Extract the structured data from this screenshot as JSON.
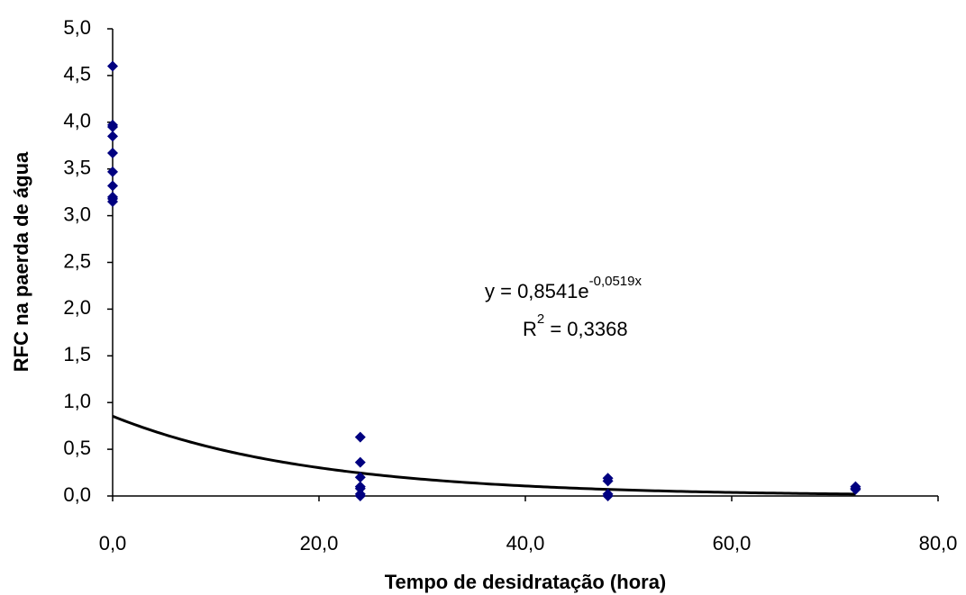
{
  "chart_data": {
    "type": "scatter",
    "x_label": "Tempo de desidratação (hora)",
    "y_label": "RFC na paerda de água",
    "xlim": [
      0,
      80
    ],
    "xticks": [
      {
        "value": 0,
        "label": "0,0"
      },
      {
        "value": 20,
        "label": "20,0"
      },
      {
        "value": 40,
        "label": "40,0"
      },
      {
        "value": 60,
        "label": "60,0"
      },
      {
        "value": 80,
        "label": "80,0"
      }
    ],
    "ylim": [
      0,
      5
    ],
    "yticks": [
      {
        "value": 0,
        "label": "0,0"
      },
      {
        "value": 0.5,
        "label": "0,5"
      },
      {
        "value": 1,
        "label": "1,0"
      },
      {
        "value": 1.5,
        "label": "1,5"
      },
      {
        "value": 2,
        "label": "2,0"
      },
      {
        "value": 2.5,
        "label": "2,5"
      },
      {
        "value": 3,
        "label": "3,0"
      },
      {
        "value": 3.5,
        "label": "3,5"
      },
      {
        "value": 4,
        "label": "4,0"
      },
      {
        "value": 4.5,
        "label": "4,5"
      },
      {
        "value": 5,
        "label": "5,0"
      }
    ],
    "grid": false,
    "series": [
      {
        "color": "#000080",
        "x": [
          0,
          0,
          0,
          0,
          0,
          0,
          0,
          0,
          0,
          0,
          24,
          24,
          24,
          24,
          24,
          24,
          24,
          48,
          48,
          48,
          48,
          72,
          72,
          72
        ],
        "values": [
          4.6,
          3.97,
          3.95,
          3.85,
          3.67,
          3.47,
          3.32,
          3.2,
          3.18,
          3.15,
          0.63,
          0.36,
          0.2,
          0.1,
          0.08,
          0.02,
          0.0,
          0.19,
          0.16,
          0.02,
          0.0,
          0.1,
          0.08,
          0.07
        ]
      }
    ],
    "trendline": {
      "a": 0.8541,
      "b": -0.0519,
      "color": "#000000"
    },
    "equation": {
      "base": "y = 0,8541e",
      "exponent": "-0,0519x"
    },
    "r_squared": {
      "letter": "R",
      "power": "2",
      "rest": " = 0,3368"
    }
  }
}
